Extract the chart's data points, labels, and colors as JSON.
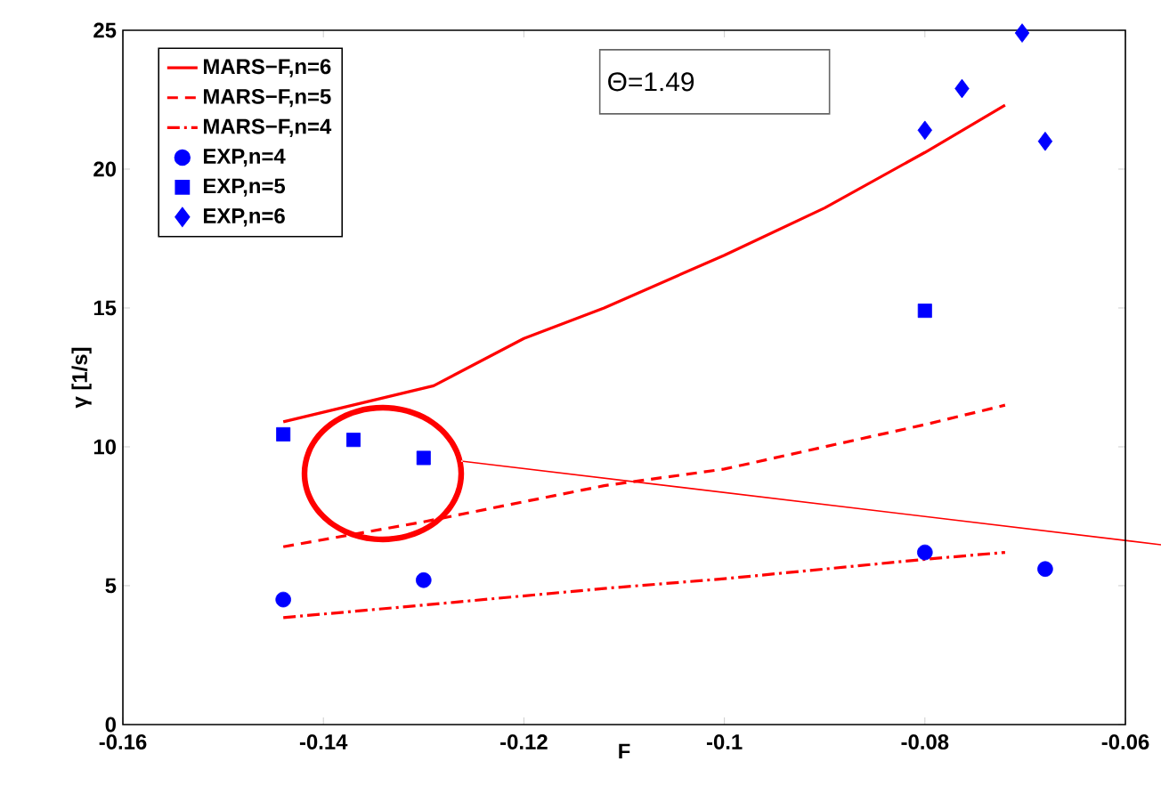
{
  "chart_data": {
    "type": "line",
    "xlabel": "F",
    "ylabel": "γ [1/s]",
    "annotations": [
      "Θ=1.49"
    ],
    "xlim": [
      -0.16,
      -0.06
    ],
    "ylim": [
      0,
      25
    ],
    "xticks": [
      -0.16,
      -0.14,
      -0.12,
      -0.1,
      -0.08,
      -0.06
    ],
    "yticks": [
      0,
      5,
      10,
      15,
      20,
      25
    ],
    "legend": "top left",
    "series": [
      {
        "name": "MARS−F,n=6",
        "line_style": "solid",
        "marker": "none",
        "color": "#ff0000",
        "x": [
          -0.144,
          -0.129,
          -0.12,
          -0.112,
          -0.1,
          -0.09,
          -0.08,
          -0.072
        ],
        "values": [
          10.9,
          12.2,
          13.9,
          15.0,
          16.9,
          18.6,
          20.6,
          22.3
        ]
      },
      {
        "name": "MARS−F,n=5",
        "line_style": "dashed",
        "marker": "none",
        "color": "#ff0000",
        "x": [
          -0.144,
          -0.13,
          -0.112,
          -0.1,
          -0.08,
          -0.072
        ],
        "values": [
          6.4,
          7.3,
          8.6,
          9.2,
          10.8,
          11.5
        ]
      },
      {
        "name": "MARS−F,n=4",
        "line_style": "dashdot",
        "marker": "none",
        "color": "#ff0000",
        "x": [
          -0.144,
          -0.13,
          -0.112,
          -0.1,
          -0.08,
          -0.072
        ],
        "values": [
          3.85,
          4.3,
          4.9,
          5.25,
          5.95,
          6.2
        ]
      },
      {
        "name": "EXP,n=4",
        "type": "scatter",
        "marker": "circle",
        "color": "#0000ff",
        "x": [
          -0.144,
          -0.13,
          -0.08,
          -0.068
        ],
        "values": [
          4.5,
          5.2,
          6.2,
          5.6
        ]
      },
      {
        "name": "EXP,n=5",
        "type": "scatter",
        "marker": "square",
        "color": "#0000ff",
        "x": [
          -0.144,
          -0.137,
          -0.13,
          -0.08
        ],
        "values": [
          10.45,
          10.25,
          9.6,
          14.9
        ]
      },
      {
        "name": "EXP,n=6",
        "type": "scatter",
        "marker": "diamond",
        "color": "#0000ff",
        "x": [
          -0.08,
          -0.0763,
          -0.0703,
          -0.068
        ],
        "values": [
          21.4,
          22.9,
          24.9,
          21.0
        ]
      }
    ]
  }
}
